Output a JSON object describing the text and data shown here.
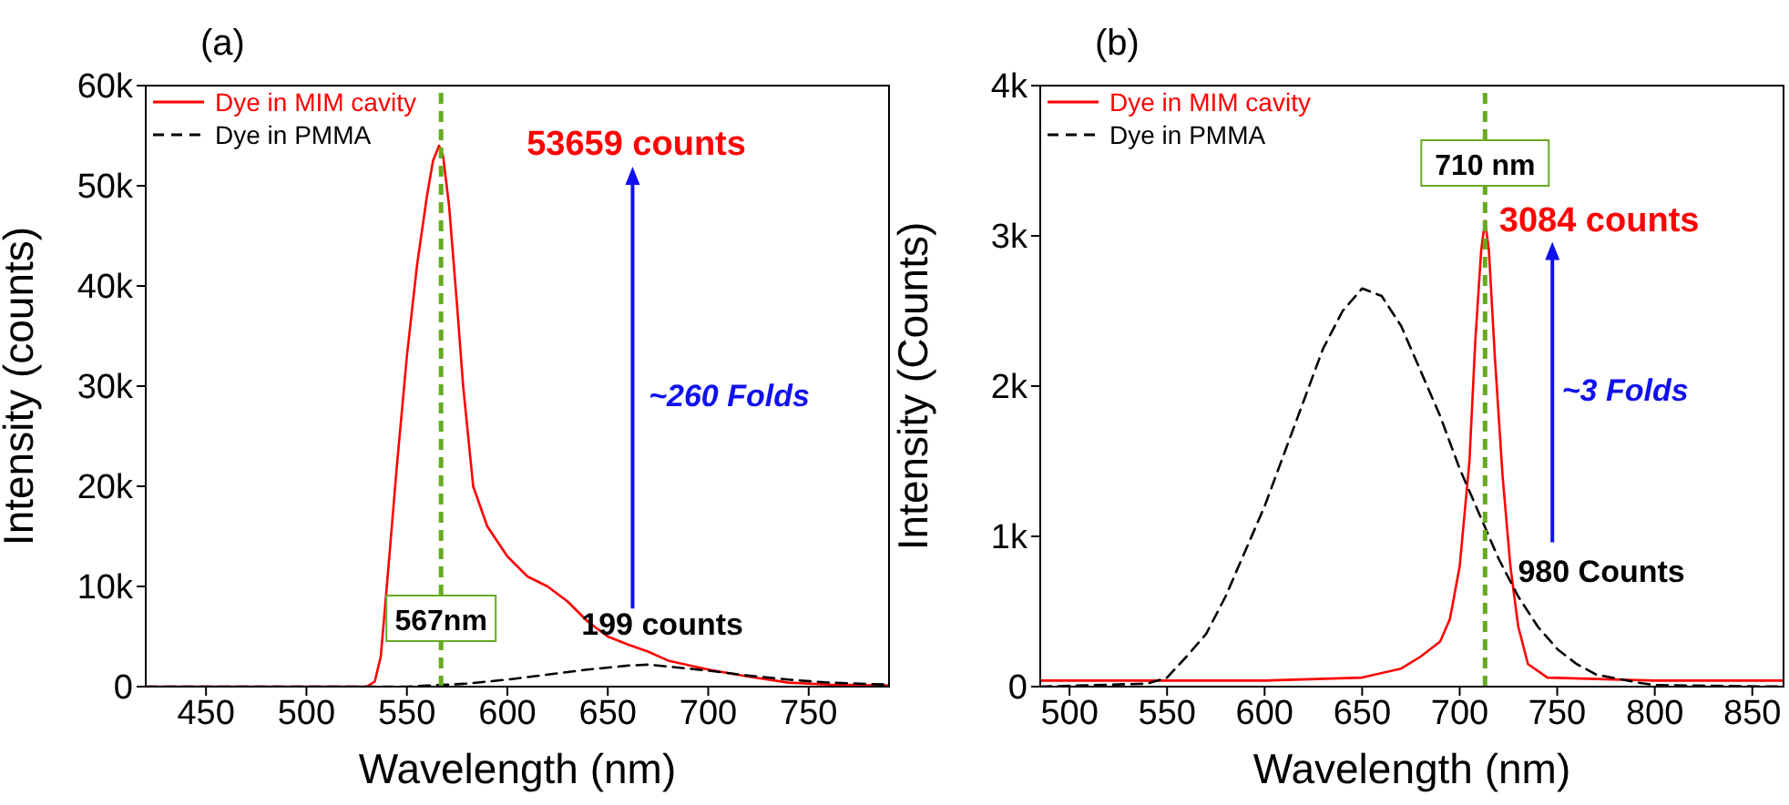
{
  "chart_data": [
    {
      "type": "line",
      "title": "(a)",
      "xlabel": "Wavelength (nm)",
      "ylabel": "Intensity (counts)",
      "xlim": [
        420,
        790
      ],
      "xticks": [
        450,
        500,
        550,
        600,
        650,
        700,
        750
      ],
      "ylim": [
        0,
        60000
      ],
      "yticks": [
        0,
        {
          "value": 10000,
          "label": "10k"
        },
        {
          "value": 20000,
          "label": "20k"
        },
        {
          "value": 30000,
          "label": "30k"
        },
        {
          "value": 40000,
          "label": "40k"
        },
        {
          "value": 50000,
          "label": "50k"
        },
        {
          "value": 60000,
          "label": "60k"
        }
      ],
      "legend": "top left",
      "grid": false,
      "marker": "none",
      "series": [
        {
          "name": "Dye in MIM cavity",
          "color": "#ff0000",
          "line_style": "solid",
          "x": [
            420,
            530,
            534,
            537,
            540,
            545,
            550,
            555,
            560,
            563,
            566,
            568,
            571,
            575,
            578,
            583,
            590,
            600,
            610,
            620,
            630,
            640,
            650,
            660,
            670,
            680,
            700,
            720,
            740,
            760,
            790
          ],
          "values": [
            0,
            0,
            500,
            3000,
            10000,
            22000,
            33000,
            42000,
            49000,
            52500,
            54000,
            53000,
            48000,
            38000,
            30000,
            20000,
            16000,
            13000,
            11000,
            10000,
            8500,
            6500,
            5000,
            4200,
            3500,
            2600,
            1700,
            1000,
            400,
            200,
            100
          ]
        },
        {
          "name": "Dye in PMMA",
          "color": "#000000",
          "line_style": "dashed",
          "x": [
            420,
            550,
            560,
            580,
            600,
            620,
            640,
            660,
            670,
            680,
            700,
            720,
            740,
            760,
            790
          ],
          "values": [
            0,
            0,
            100,
            300,
            700,
            1200,
            1700,
            2100,
            2200,
            2000,
            1600,
            1100,
            700,
            400,
            200
          ]
        }
      ],
      "ref_lines": [
        {
          "axis": "x",
          "value": 567,
          "label": "567nm",
          "color": "#66aa22",
          "line_style": "dashed"
        }
      ],
      "annotations": [
        "53659 counts",
        "~260 Folds",
        "199 counts"
      ]
    },
    {
      "type": "line",
      "title": "(b)",
      "xlabel": "Wavelength (nm)",
      "ylabel": "Intensity (Counts)",
      "xlim": [
        485,
        866
      ],
      "xticks": [
        500,
        550,
        600,
        650,
        700,
        750,
        800,
        850
      ],
      "ylim": [
        0,
        4000
      ],
      "yticks": [
        0,
        {
          "value": 1000,
          "label": "1k"
        },
        {
          "value": 2000,
          "label": "2k"
        },
        {
          "value": 3000,
          "label": "3k"
        },
        {
          "value": 4000,
          "label": "4k"
        }
      ],
      "legend": "top left",
      "grid": false,
      "marker": "none",
      "series": [
        {
          "name": "Dye in MIM cavity",
          "color": "#ff0000",
          "line_style": "solid",
          "x": [
            485,
            600,
            650,
            670,
            680,
            690,
            695,
            700,
            705,
            708,
            711,
            713,
            715,
            718,
            722,
            726,
            730,
            735,
            745,
            800,
            866
          ],
          "values": [
            40,
            40,
            60,
            120,
            200,
            300,
            450,
            800,
            1500,
            2300,
            2900,
            3100,
            2900,
            2200,
            1400,
            800,
            400,
            150,
            60,
            40,
            40
          ]
        },
        {
          "name": "Dye in PMMA",
          "color": "#000000",
          "line_style": "dashed",
          "x": [
            485,
            540,
            550,
            560,
            570,
            580,
            590,
            600,
            610,
            620,
            630,
            640,
            650,
            660,
            670,
            680,
            690,
            700,
            710,
            720,
            730,
            740,
            750,
            760,
            770,
            790,
            800,
            866
          ],
          "values": [
            0,
            20,
            60,
            200,
            350,
            600,
            900,
            1200,
            1550,
            1900,
            2250,
            2500,
            2650,
            2600,
            2400,
            2100,
            1800,
            1450,
            1150,
            850,
            600,
            400,
            250,
            150,
            80,
            30,
            10,
            0
          ]
        }
      ],
      "ref_lines": [
        {
          "axis": "x",
          "value": 713,
          "label": "710 nm",
          "color": "#66aa22",
          "line_style": "dashed"
        }
      ],
      "annotations": [
        "3084 counts",
        "~3 Folds",
        "980 Counts"
      ]
    }
  ]
}
